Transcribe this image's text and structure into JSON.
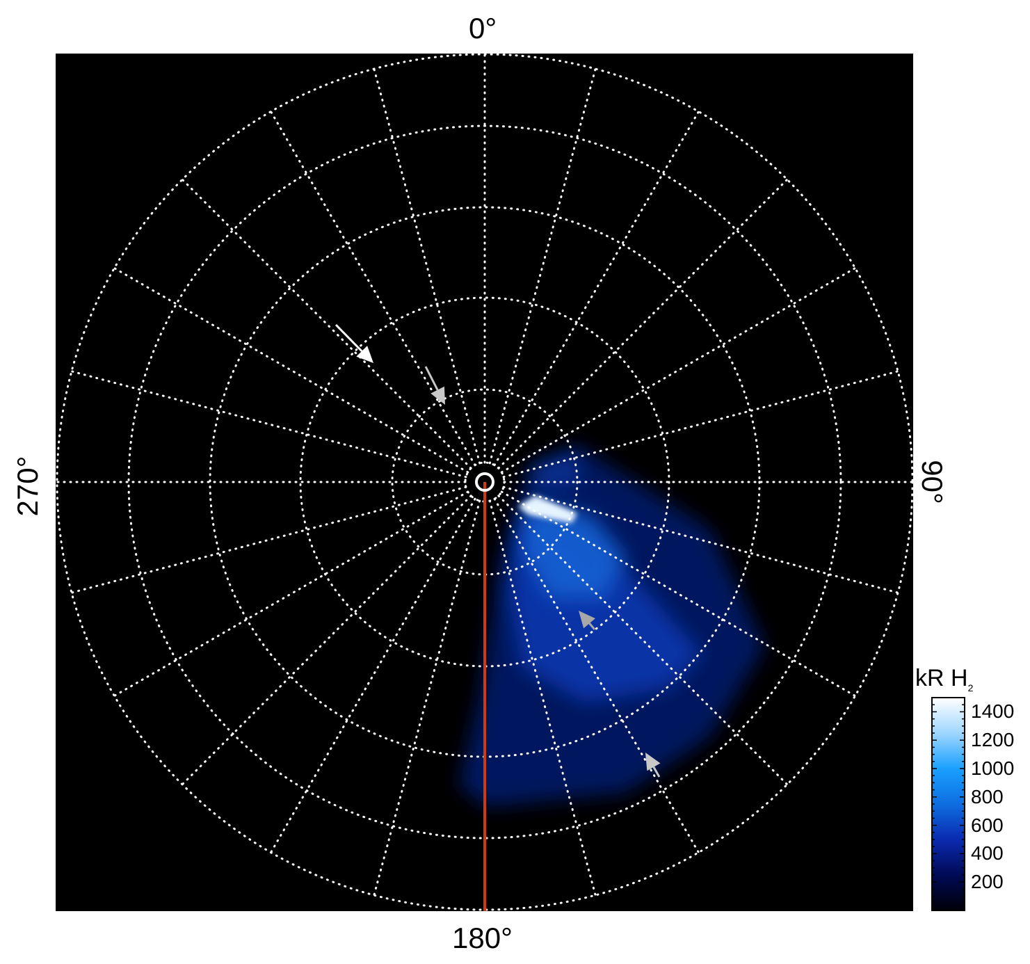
{
  "chart_data": {
    "type": "heatmap",
    "projection": "polar",
    "angle_labels": {
      "top": "0°",
      "right": "90°",
      "bottom": "180°",
      "left": "270°"
    },
    "grid": true,
    "grid_spoke_step_deg": 15,
    "grid_circles": 5,
    "colorbar": {
      "label": "kR H",
      "label_subscript": "2",
      "ticks": [
        "200",
        "400",
        "600",
        "800",
        "1000",
        "1200",
        "1400"
      ],
      "range": [
        0,
        1500
      ],
      "colors": [
        "#000008",
        "#000a55",
        "#0a2ab0",
        "#0e6ee0",
        "#1aa0ff",
        "#9fd6ff",
        "#ffffff"
      ],
      "placement": "bottom-right"
    },
    "reference_line": {
      "angle_deg": 180,
      "color": "#d03a10"
    },
    "arrows": [
      {
        "color": "#ffffff"
      },
      {
        "color": "#c8c8c8"
      },
      {
        "color": "#a8a8a8"
      },
      {
        "color": "#c8c8c8"
      }
    ]
  }
}
